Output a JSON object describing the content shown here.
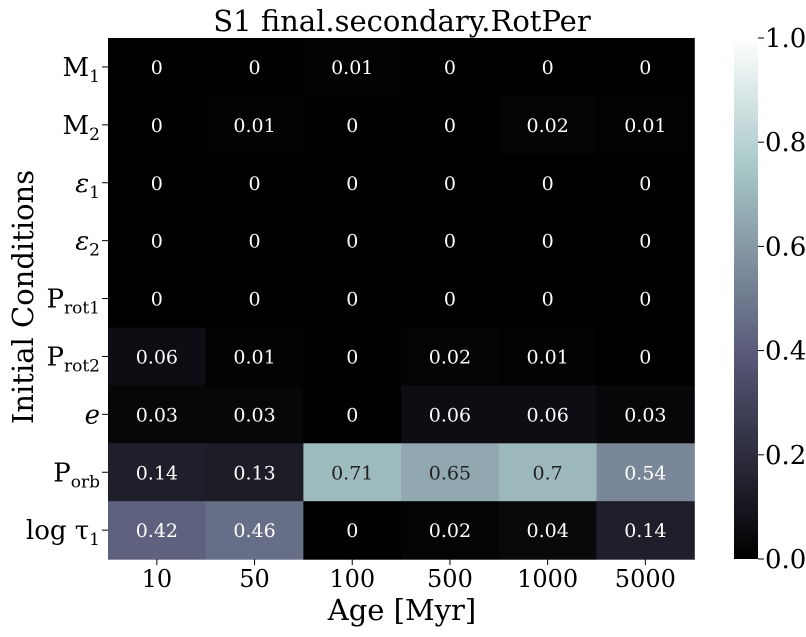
{
  "chart_data": {
    "type": "heatmap",
    "title": "S1 final.secondary.RotPer",
    "xlabel": "Age [Myr]",
    "ylabel": "Initial Conditions",
    "x_categories": [
      "10",
      "50",
      "100",
      "500",
      "1000",
      "5000"
    ],
    "y_categories": [
      {
        "base": "M",
        "sub": "1",
        "italic": false
      },
      {
        "base": "M",
        "sub": "2",
        "italic": false
      },
      {
        "base": "ε",
        "sub": "1",
        "italic": true
      },
      {
        "base": "ε",
        "sub": "2",
        "italic": true
      },
      {
        "base": "P",
        "sub": "rot1",
        "italic": false
      },
      {
        "base": "P",
        "sub": "rot2",
        "italic": false
      },
      {
        "base": "e",
        "sub": "",
        "italic": true
      },
      {
        "base": "P",
        "sub": "orb",
        "italic": false
      },
      {
        "base": "log τ",
        "sub": "1",
        "italic": false
      }
    ],
    "values": [
      [
        0,
        0,
        0.01,
        0,
        0,
        0
      ],
      [
        0,
        0.01,
        0,
        0,
        0.02,
        0.01
      ],
      [
        0,
        0,
        0,
        0,
        0,
        0
      ],
      [
        0,
        0,
        0,
        0,
        0,
        0
      ],
      [
        0,
        0,
        0,
        0,
        0,
        0
      ],
      [
        0.06,
        0.01,
        0,
        0.02,
        0.01,
        0
      ],
      [
        0.03,
        0.03,
        0,
        0.06,
        0.06,
        0.03
      ],
      [
        0.14,
        0.13,
        0.71,
        0.65,
        0.7,
        0.54
      ],
      [
        0.42,
        0.46,
        0,
        0.02,
        0.04,
        0.14
      ]
    ],
    "colorbar": {
      "range": [
        0.0,
        1.0
      ],
      "ticks": [
        "0.0",
        "0.2",
        "0.4",
        "0.6",
        "0.8",
        "1.0"
      ],
      "colormap": "bone"
    },
    "grid": false
  }
}
